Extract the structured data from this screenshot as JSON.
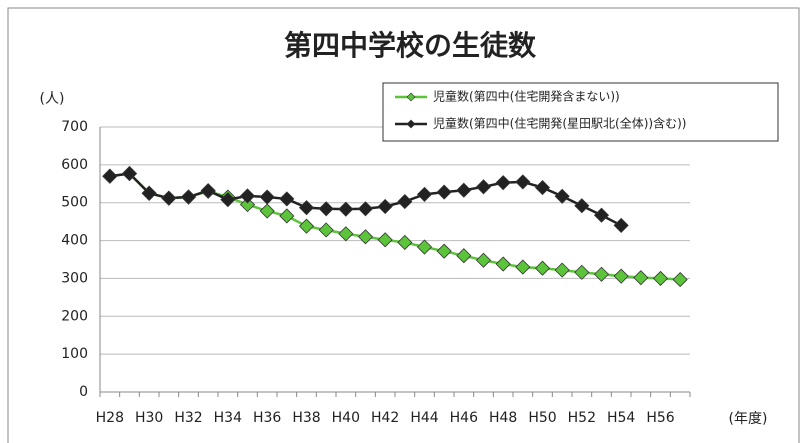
{
  "chart_data": {
    "type": "line",
    "title": "第四中学校の生徒数",
    "y_label": "(人)",
    "x_label": "(年度)",
    "categories": [
      "H28",
      null,
      "H30",
      null,
      "H32",
      null,
      "H34",
      null,
      "H36",
      null,
      "H38",
      null,
      "H40",
      null,
      "H42",
      null,
      "H44",
      null,
      "H46",
      null,
      "H48",
      null,
      "H50",
      null,
      "H52",
      null,
      "H54",
      null,
      "H56",
      null
    ],
    "series": [
      {
        "name": "児童数(第四中(住宅開発含まない))",
        "color": "#5cc43a",
        "values": [
          570,
          577,
          525,
          512,
          515,
          530,
          515,
          495,
          478,
          465,
          438,
          428,
          418,
          410,
          402,
          395,
          383,
          372,
          360,
          348,
          338,
          330,
          327,
          322,
          316,
          311,
          306,
          302,
          300,
          297
        ]
      },
      {
        "name": "児童数(第四中(住宅開発(星田駅北(全体))含む))",
        "color": "#222222",
        "values": [
          570,
          577,
          525,
          512,
          515,
          532,
          508,
          518,
          515,
          510,
          487,
          484,
          483,
          484,
          490,
          503,
          522,
          528,
          533,
          542,
          553,
          555,
          540,
          517,
          492,
          467,
          440,
          null,
          null,
          null
        ]
      }
    ],
    "ylim": [
      0,
      700
    ],
    "yticks": [
      0,
      100,
      200,
      300,
      400,
      500,
      600,
      700
    ],
    "grid": true,
    "legend": "upper right"
  }
}
